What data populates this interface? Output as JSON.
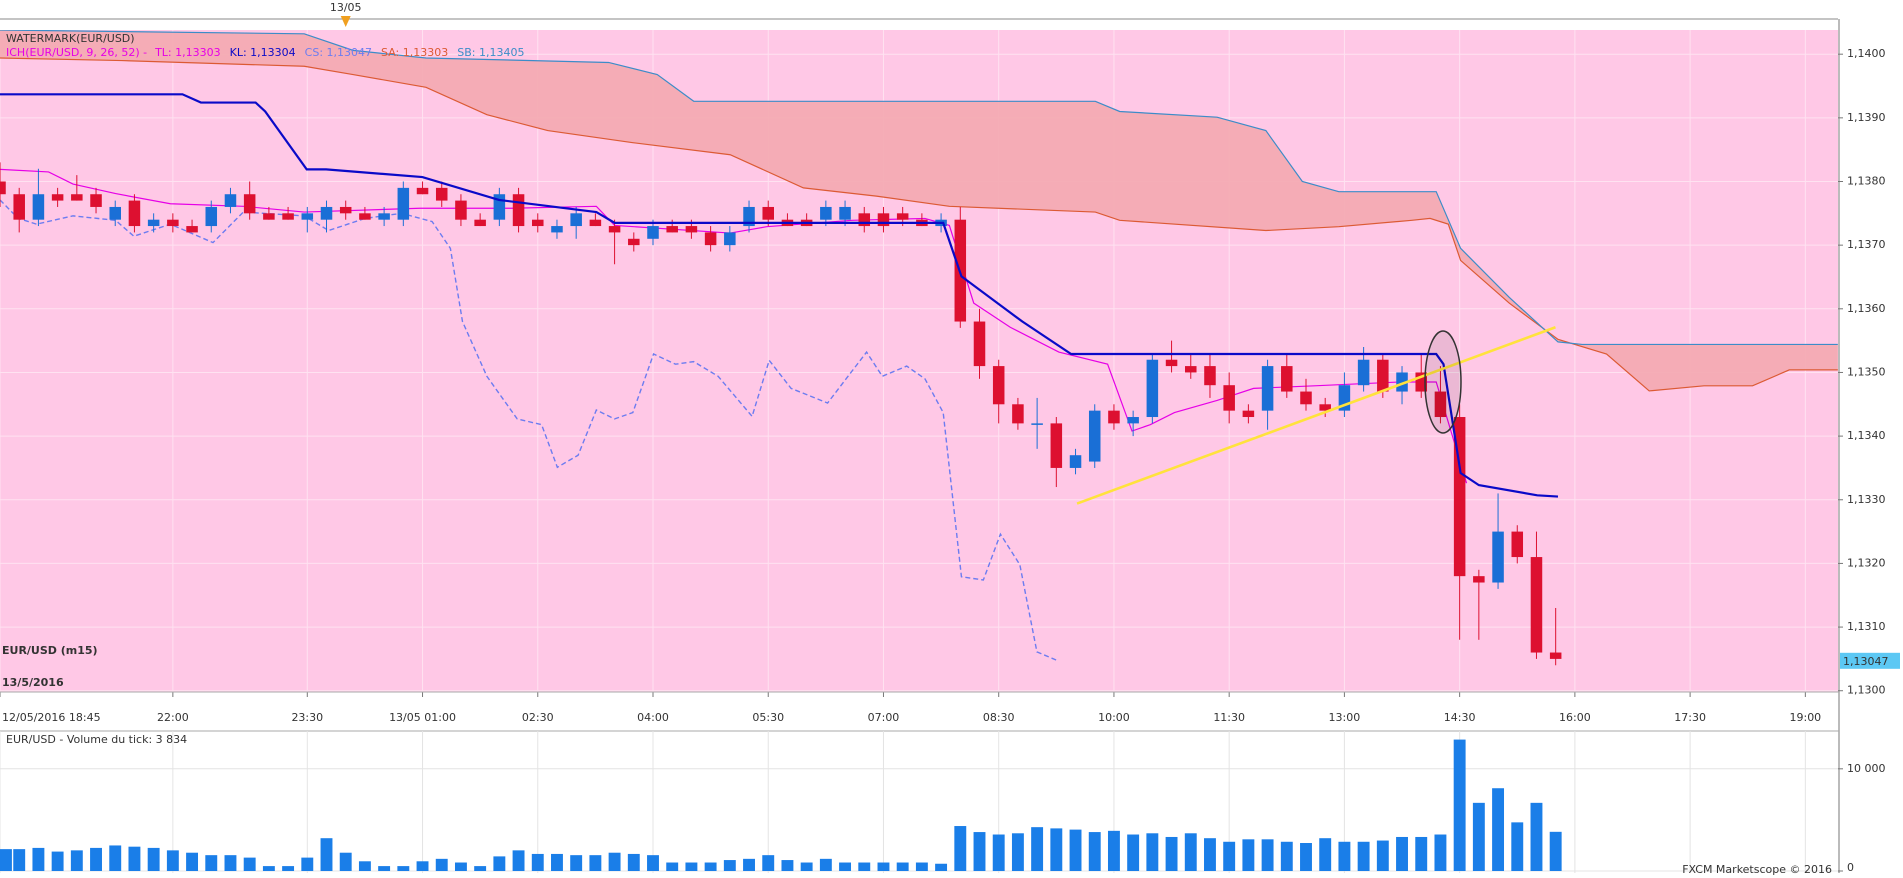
{
  "chart_data": [
    {
      "type": "candlestick",
      "title": "WATERMARK(EUR/USD)",
      "indicator_label": "ICH(EUR/USD, 9, 26, 52) -",
      "watermark": "EUR/USD (m15)",
      "subtitle": "13/5/2016",
      "marker": {
        "label": "13/05",
        "x": 18
      },
      "background": "#ffc8e6",
      "grid": true,
      "up_color": "#1a6fd6",
      "down_color": "#dd1030",
      "xlim": [
        0,
        95.7
      ],
      "xticks": [
        {
          "value": 0,
          "label": "12/05/2016 18:45"
        },
        {
          "value": 9,
          "label": "22:00"
        },
        {
          "value": 16,
          "label": "23:30"
        },
        {
          "value": 22,
          "label": "13/05 01:00"
        },
        {
          "value": 28,
          "label": "02:30"
        },
        {
          "value": 34,
          "label": "04:00"
        },
        {
          "value": 40,
          "label": "05:30"
        },
        {
          "value": 46,
          "label": "07:00"
        },
        {
          "value": 52,
          "label": "08:30"
        },
        {
          "value": 58,
          "label": "10:00"
        },
        {
          "value": 64,
          "label": "11:30"
        },
        {
          "value": 70,
          "label": "13:00"
        },
        {
          "value": 76,
          "label": "14:30"
        },
        {
          "value": 82,
          "label": "16:00"
        },
        {
          "value": 88,
          "label": "17:30"
        },
        {
          "value": 94,
          "label": "19:00"
        }
      ],
      "ylim": [
        1.12998,
        1.14038
      ],
      "yticks": [
        {
          "value": 1.13,
          "label": "1,1300"
        },
        {
          "value": 1.131,
          "label": "1,1310"
        },
        {
          "value": 1.132,
          "label": "1,1320"
        },
        {
          "value": 1.133,
          "label": "1,1330"
        },
        {
          "value": 1.134,
          "label": "1,1340"
        },
        {
          "value": 1.135,
          "label": "1,1350"
        },
        {
          "value": 1.136,
          "label": "1,1360"
        },
        {
          "value": 1.137,
          "label": "1,1370"
        },
        {
          "value": 1.138,
          "label": "1,1380"
        },
        {
          "value": 1.139,
          "label": "1,1390"
        },
        {
          "value": 1.14,
          "label": "1,1400"
        }
      ],
      "open": [
        1.138,
        1.1378,
        1.1374,
        1.1378,
        1.1378,
        1.1378,
        1.1374,
        1.1377,
        1.1373,
        1.1374,
        1.1373,
        1.1373,
        1.1376,
        1.1378,
        1.1375,
        1.1375,
        1.1374,
        1.1374,
        1.1376,
        1.1375,
        1.1374,
        1.1374,
        1.1379,
        1.1379,
        1.1377,
        1.1374,
        1.1374,
        1.1378,
        1.1374,
        1.1372,
        1.1373,
        1.1374,
        1.1373,
        1.1371,
        1.1371,
        1.1373,
        1.1373,
        1.1372,
        1.137,
        1.1373,
        1.1376,
        1.1374,
        1.1374,
        1.1374,
        1.1374,
        1.1375,
        1.1375,
        1.1375,
        1.1374,
        1.1373,
        1.1374,
        1.1358,
        1.1351,
        1.1345,
        1.1342,
        1.1342,
        1.1335,
        1.1336,
        1.1344,
        1.1342,
        1.1343,
        1.1352,
        1.1351,
        1.1351,
        1.1348,
        1.1344,
        1.1344,
        1.1351,
        1.1347,
        1.1345,
        1.1344,
        1.1348,
        1.1352,
        1.1347,
        1.135,
        1.1347,
        1.1343,
        1.1318,
        1.1317,
        1.1325,
        1.1321,
        1.1306
      ],
      "high": [
        1.1383,
        1.1379,
        1.1382,
        1.1379,
        1.1381,
        1.1379,
        1.1377,
        1.1378,
        1.1375,
        1.1375,
        1.1374,
        1.1377,
        1.1379,
        1.138,
        1.1376,
        1.1376,
        1.1376,
        1.1377,
        1.1377,
        1.1376,
        1.1376,
        1.138,
        1.138,
        1.138,
        1.1378,
        1.1375,
        1.1379,
        1.1379,
        1.1375,
        1.1374,
        1.1376,
        1.1375,
        1.1374,
        1.1372,
        1.1374,
        1.1374,
        1.1374,
        1.1373,
        1.1373,
        1.1377,
        1.1377,
        1.1375,
        1.1375,
        1.1377,
        1.1377,
        1.1376,
        1.1376,
        1.1376,
        1.1375,
        1.1375,
        1.1376,
        1.136,
        1.1352,
        1.1346,
        1.1346,
        1.1343,
        1.1338,
        1.1345,
        1.1345,
        1.1344,
        1.1353,
        1.1355,
        1.1353,
        1.1353,
        1.135,
        1.1345,
        1.1352,
        1.1353,
        1.1349,
        1.1346,
        1.135,
        1.1354,
        1.1353,
        1.1351,
        1.1353,
        1.1351,
        1.1345,
        1.1319,
        1.1331,
        1.1326,
        1.1325,
        1.1313
      ],
      "low": [
        1.1376,
        1.1372,
        1.1373,
        1.1376,
        1.1377,
        1.1375,
        1.1373,
        1.1372,
        1.1372,
        1.1372,
        1.1372,
        1.1372,
        1.1375,
        1.1374,
        1.1374,
        1.1374,
        1.1372,
        1.1372,
        1.1374,
        1.1374,
        1.1373,
        1.1373,
        1.1378,
        1.1376,
        1.1373,
        1.1373,
        1.1373,
        1.1372,
        1.1372,
        1.1371,
        1.1371,
        1.1373,
        1.1367,
        1.1369,
        1.137,
        1.1372,
        1.1371,
        1.1369,
        1.1369,
        1.1372,
        1.1373,
        1.1373,
        1.1373,
        1.1373,
        1.1373,
        1.1372,
        1.1372,
        1.1373,
        1.1373,
        1.1372,
        1.1357,
        1.1349,
        1.1342,
        1.1341,
        1.1338,
        1.1332,
        1.1334,
        1.1335,
        1.1341,
        1.134,
        1.1342,
        1.135,
        1.1349,
        1.1346,
        1.1342,
        1.1342,
        1.1341,
        1.1346,
        1.1344,
        1.1343,
        1.1343,
        1.1347,
        1.1346,
        1.1345,
        1.1346,
        1.1342,
        1.1308,
        1.1308,
        1.1316,
        1.132,
        1.1305,
        1.1304
      ],
      "close": [
        1.1378,
        1.1374,
        1.1378,
        1.1377,
        1.1377,
        1.1376,
        1.1376,
        1.1373,
        1.1374,
        1.1373,
        1.1372,
        1.1376,
        1.1378,
        1.1375,
        1.1374,
        1.1374,
        1.1375,
        1.1376,
        1.1375,
        1.1374,
        1.1375,
        1.1379,
        1.1378,
        1.1377,
        1.1374,
        1.1373,
        1.1378,
        1.1373,
        1.1373,
        1.1373,
        1.1375,
        1.1373,
        1.1372,
        1.137,
        1.1373,
        1.1372,
        1.1372,
        1.137,
        1.1372,
        1.1376,
        1.1374,
        1.1373,
        1.1373,
        1.1376,
        1.1376,
        1.1373,
        1.1373,
        1.1374,
        1.1373,
        1.1374,
        1.1358,
        1.1351,
        1.1345,
        1.1342,
        1.1342,
        1.1335,
        1.1337,
        1.1344,
        1.1342,
        1.1343,
        1.1352,
        1.1351,
        1.135,
        1.1348,
        1.1344,
        1.1343,
        1.1351,
        1.1347,
        1.1345,
        1.1344,
        1.1348,
        1.1352,
        1.1347,
        1.135,
        1.1347,
        1.1343,
        1.1318,
        1.1317,
        1.1325,
        1.1321,
        1.1306,
        1.1305
      ],
      "senkou_b": {
        "label": "SB: 1,13405",
        "color": "#3c8cc8",
        "x": [
          0,
          15.84,
          18.38,
          22.18,
          31.69,
          34.22,
          36.12,
          57.03,
          58.3,
          63.37,
          65.91,
          67.81,
          69.71,
          74.78,
          76.05,
          78.58,
          81.12,
          82.38,
          95.69
        ],
        "values": [
          1.14038,
          1.14032,
          1.14006,
          1.13994,
          1.13987,
          1.13968,
          1.13926,
          1.13926,
          1.1391,
          1.13901,
          1.1388,
          1.138,
          1.13784,
          1.13784,
          1.13695,
          1.13618,
          1.13548,
          1.13544,
          1.13544
        ]
      },
      "senkou_a": {
        "label": "SA: 1,13303",
        "color": "#dc5a34",
        "x": [
          0,
          6.34,
          15.84,
          18.38,
          22.18,
          25.35,
          28.52,
          32.95,
          38.02,
          41.83,
          45.63,
          49.43,
          57.03,
          58.3,
          65.91,
          69.71,
          73.51,
          74.46,
          75.41,
          76.05,
          78.58,
          81.12,
          83.65,
          85.87,
          88.72,
          91.25,
          93.16,
          95.69
        ],
        "values": [
          1.13994,
          1.1399,
          1.13981,
          1.13968,
          1.13948,
          1.13905,
          1.1388,
          1.13861,
          1.13842,
          1.1379,
          1.13777,
          1.13761,
          1.13752,
          1.13739,
          1.13723,
          1.13729,
          1.13739,
          1.13742,
          1.13733,
          1.13676,
          1.13609,
          1.13552,
          1.13529,
          1.13471,
          1.13479,
          1.13479,
          1.13504,
          1.13504
        ]
      },
      "cloud_color": "#f4a8b0",
      "tenkan": {
        "label": "TL: 1,13303",
        "color": "#e600e6",
        "x": [
          0,
          2.53,
          3.8,
          6.02,
          8.87,
          12.67,
          15.84,
          21.86,
          26.62,
          31.05,
          32,
          38.02,
          39.92,
          44.36,
          48.16,
          49.43,
          50.7,
          52.6,
          55.13,
          57.67,
          58.94,
          59.89,
          61.15,
          63.37,
          65.27,
          68.44,
          72.88,
          74.78,
          76.36
        ],
        "values": [
          1.13819,
          1.13815,
          1.13796,
          1.13781,
          1.13765,
          1.13761,
          1.13752,
          1.13758,
          1.13758,
          1.13761,
          1.13731,
          1.13719,
          1.13729,
          1.13739,
          1.13742,
          1.13731,
          1.13609,
          1.13571,
          1.13532,
          1.13513,
          1.13408,
          1.13418,
          1.13437,
          1.13456,
          1.13475,
          1.13479,
          1.13485,
          1.13485,
          1.13326
        ]
      },
      "kijun": {
        "label": "KL: 1,13304",
        "color": "#0a0ac8",
        "x": [
          0,
          9.5,
          10.46,
          13.31,
          13.81,
          15.97,
          16.98,
          21.99,
          25.98,
          31.05,
          32,
          49.11,
          50.06,
          53.23,
          55.77,
          74.78,
          75.16,
          76.05,
          77,
          80.04,
          81.12
        ],
        "values": [
          1.13937,
          1.13937,
          1.13924,
          1.13924,
          1.1391,
          1.13819,
          1.13819,
          1.13807,
          1.13771,
          1.13752,
          1.13735,
          1.13735,
          1.13651,
          1.1358,
          1.13529,
          1.13529,
          1.13513,
          1.13342,
          1.13323,
          1.13307,
          1.13305
        ]
      },
      "chikou": {
        "label": "CS: 1,13047",
        "color": "#6c7cf0",
        "x": [
          0,
          0.95,
          1.9,
          3.8,
          6.02,
          6.97,
          8.87,
          11.09,
          12.67,
          15.84,
          17.11,
          19.01,
          20.91,
          22.5,
          23.45,
          24.08,
          25.35,
          26.93,
          28.2,
          29.02,
          30.1,
          31.05,
          32,
          32.95,
          34.03,
          35.17,
          36.12,
          37.39,
          39.16,
          40.05,
          41.19,
          43.09,
          45.12,
          45.94,
          47.21,
          48.16,
          49.11,
          50.06,
          51.2,
          52.09,
          53.1,
          53.99,
          55.01
        ],
        "values": [
          1.13771,
          1.13742,
          1.13733,
          1.13746,
          1.13739,
          1.13714,
          1.13733,
          1.13704,
          1.13752,
          1.13746,
          1.13723,
          1.13742,
          1.1375,
          1.13737,
          1.13695,
          1.1358,
          1.13494,
          1.13427,
          1.13418,
          1.13351,
          1.1337,
          1.13441,
          1.13427,
          1.13437,
          1.13529,
          1.13513,
          1.13517,
          1.13494,
          1.13431,
          1.13519,
          1.13475,
          1.13452,
          1.13532,
          1.13494,
          1.1351,
          1.1349,
          1.13437,
          1.13179,
          1.13174,
          1.13246,
          1.13198,
          1.13061,
          1.13048
        ]
      },
      "trendline": {
        "color": "#ffe23c",
        "x": [
          56.08,
          80.99
        ],
        "values": [
          1.13294,
          1.13571
        ]
      },
      "last_price": {
        "value": 1.13047,
        "label": "1,13047",
        "color": "#5cc8f4"
      }
    },
    {
      "type": "bar",
      "title": "EUR/USD - Volume du tick: 3 834",
      "footer": "FXCM Marketscope © 2016",
      "color": "#1a7ee8",
      "ylim": [
        0,
        13700
      ],
      "yticks": [
        0,
        {
          "value": 10000,
          "label": "10 000"
        }
      ],
      "values": [
        2140,
        2140,
        2260,
        1900,
        2020,
        2260,
        2500,
        2380,
        2260,
        2020,
        1790,
        1550,
        1550,
        1310,
        480,
        480,
        1310,
        3210,
        1790,
        950,
        480,
        480,
        950,
        1190,
        830,
        480,
        1430,
        2020,
        1670,
        1670,
        1550,
        1550,
        1790,
        1670,
        1550,
        830,
        830,
        830,
        1070,
        1190,
        1550,
        1070,
        830,
        1190,
        830,
        830,
        830,
        830,
        830,
        710,
        4400,
        3810,
        3570,
        3690,
        4290,
        4170,
        4050,
        3810,
        3930,
        3570,
        3690,
        3330,
        3690,
        3210,
        2860,
        3100,
        3100,
        2860,
        2740,
        3210,
        2860,
        2860,
        2980,
        3330,
        3330,
        3570,
        12860,
        6670,
        8100,
        4760,
        6670,
        3834
      ]
    }
  ]
}
